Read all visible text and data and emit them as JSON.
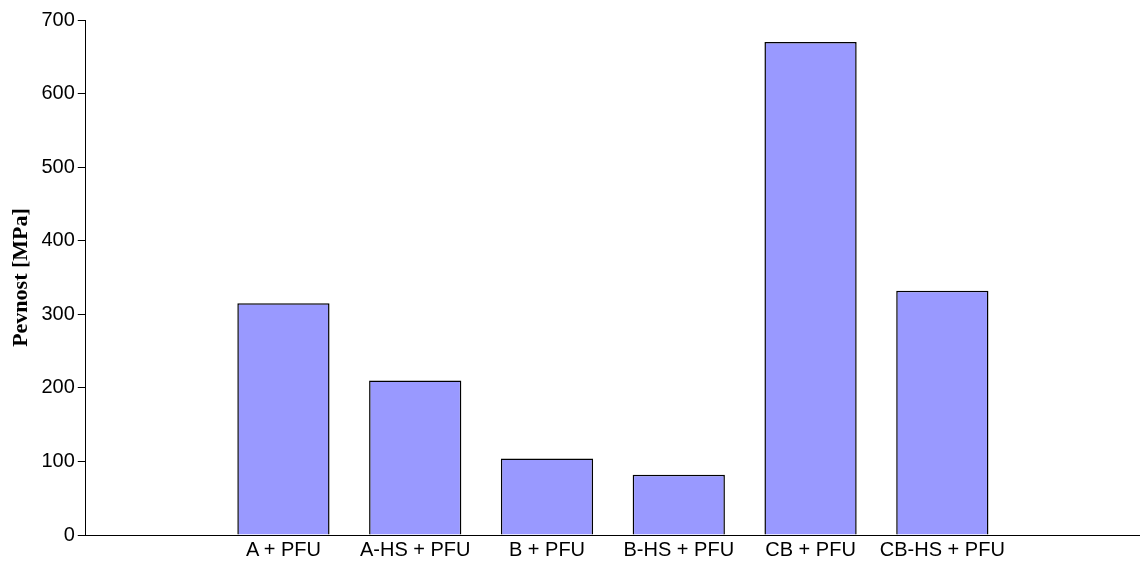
{
  "chart_data": {
    "type": "bar",
    "ylabel": "Pevnost [MPa]",
    "categories": [
      null,
      "A + PFU",
      "A-HS + PFU",
      "B + PFU",
      "B-HS + PFU",
      "CB + PFU",
      "CB-HS + PFU",
      null
    ],
    "values": [
      null,
      315,
      210,
      104,
      82,
      670,
      332,
      null
    ],
    "color": "#9999ff",
    "ylim": [
      0,
      700
    ],
    "yticks": [
      0,
      100,
      200,
      300,
      400,
      500,
      600,
      700
    ],
    "grid": false,
    "legend": false
  }
}
